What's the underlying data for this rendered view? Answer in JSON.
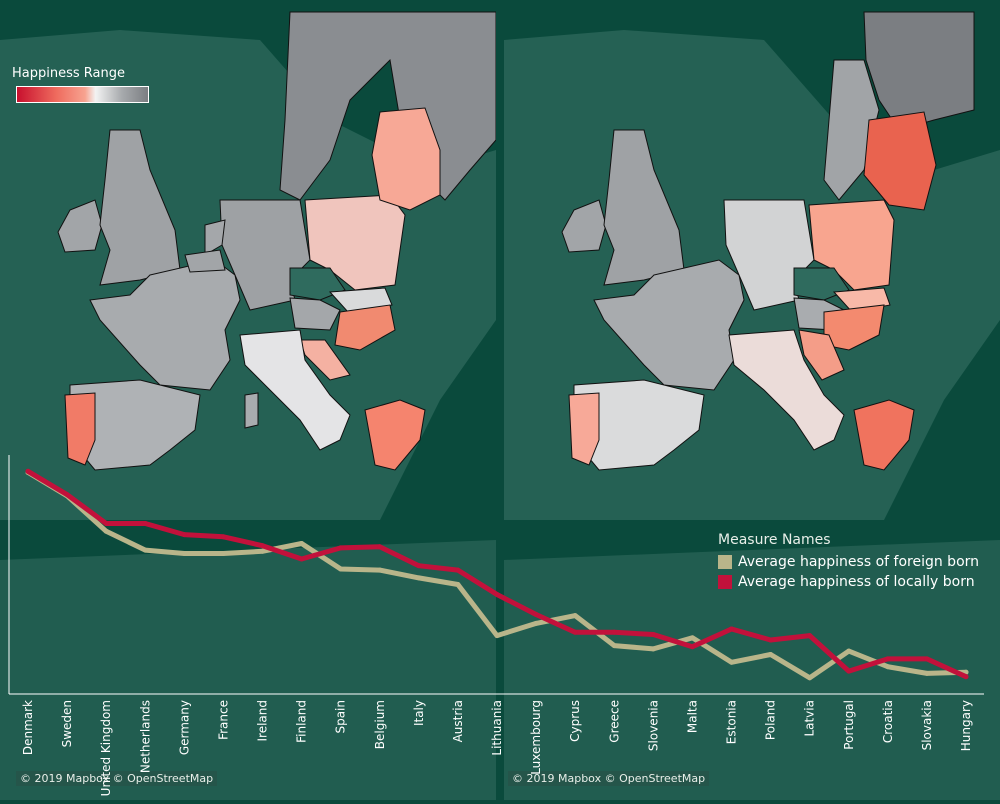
{
  "legend_range": {
    "title": "Happiness Range",
    "gradient_stops": [
      "#c8102e",
      "#ef6b5e",
      "#f7a390",
      "#f3f3f3",
      "#a7aaad",
      "#7b7e82"
    ]
  },
  "attribution": {
    "left": "© 2019 Mapbox © OpenStreetMap",
    "right": "© 2019 Mapbox © OpenStreetMap"
  },
  "colors": {
    "background": "#0a4a3c",
    "land_gray": "#9da1a5",
    "foreign_born": "#b9b58a",
    "locally_born": "#c2113b"
  },
  "chart_data": {
    "type": "line",
    "categories": [
      "Denmark",
      "Sweden",
      "United Kingdom",
      "Netherlands",
      "Germany",
      "France",
      "Ireland",
      "Finland",
      "Spain",
      "Belgium",
      "Italy",
      "Austria",
      "Lithuania",
      "Luxembourg",
      "Cyprus",
      "Greece",
      "Slovenia",
      "Malta",
      "Estonia",
      "Poland",
      "Latvia",
      "Portugal",
      "Croatia",
      "Slovakia",
      "Hungary"
    ],
    "legend_title": "Measure Names",
    "legend_position": "right",
    "series": [
      {
        "name": "Average happiness of foreign born",
        "color": "#b9b58a",
        "values": [
          0.98,
          0.875,
          0.715,
          0.63,
          0.615,
          0.615,
          0.625,
          0.66,
          0.545,
          0.54,
          0.505,
          0.475,
          0.245,
          0.3,
          0.335,
          0.2,
          0.185,
          0.235,
          0.125,
          0.16,
          0.055,
          0.175,
          0.105,
          0.075,
          0.08
        ]
      },
      {
        "name": "Average happiness of locally born",
        "color": "#c2113b",
        "values": [
          0.985,
          0.88,
          0.75,
          0.75,
          0.7,
          0.69,
          0.65,
          0.59,
          0.64,
          0.645,
          0.56,
          0.54,
          0.43,
          0.34,
          0.26,
          0.26,
          0.25,
          0.195,
          0.275,
          0.225,
          0.245,
          0.085,
          0.14,
          0.14,
          0.06
        ]
      }
    ],
    "ylim": [
      0,
      1
    ],
    "grid": false
  }
}
